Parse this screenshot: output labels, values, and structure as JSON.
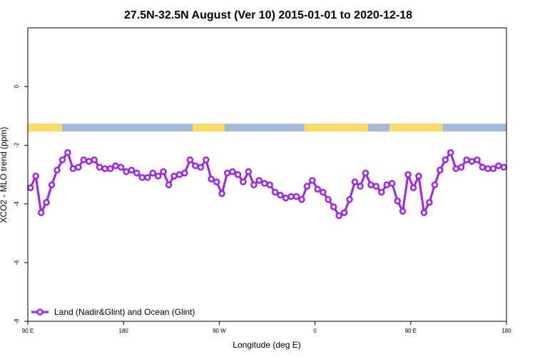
{
  "chart_data": {
    "type": "line",
    "title": "27.5N-32.5N August (Ver 10)   2015-01-01 to 2020-12-18",
    "xlabel": "Longitude (deg E)",
    "ylabel": "XCO2 - MLO trend (ppm)",
    "xlim": [
      90,
      540
    ],
    "ylim": [
      -8,
      2
    ],
    "x_ticks": [
      {
        "value": 90,
        "label": "90 E"
      },
      {
        "value": 180,
        "label": "180"
      },
      {
        "value": 270,
        "label": "90 W"
      },
      {
        "value": 360,
        "label": "0"
      },
      {
        "value": 450,
        "label": "90 E"
      },
      {
        "value": 540,
        "label": "180"
      }
    ],
    "y_ticks": [
      {
        "value": 0,
        "label": "0"
      },
      {
        "value": -2,
        "label": "-2"
      },
      {
        "value": -4,
        "label": "-4"
      },
      {
        "value": -6,
        "label": "-6"
      },
      {
        "value": -8,
        "label": "-8"
      }
    ],
    "grid": false,
    "legend_position": "bottom-left",
    "series": [
      {
        "name": "Land (Nadir&Glint) and Ocean (Glint)",
        "color": "#a020f0",
        "x": [
          92.5,
          97.5,
          102.5,
          107.5,
          112.5,
          117.5,
          122.5,
          127.5,
          132.5,
          137.5,
          142.5,
          147.5,
          152.5,
          157.5,
          162.5,
          167.5,
          172.5,
          177.5,
          182.5,
          187.5,
          192.5,
          197.5,
          202.5,
          207.5,
          212.5,
          217.5,
          222.5,
          227.5,
          232.5,
          237.5,
          242.5,
          247.5,
          252.5,
          257.5,
          262.5,
          267.5,
          272.5,
          277.5,
          282.5,
          287.5,
          292.5,
          297.5,
          302.5,
          307.5,
          312.5,
          317.5,
          322.5,
          327.5,
          332.5,
          337.5,
          342.5,
          347.5,
          352.5,
          357.5,
          362.5,
          367.5,
          372.5,
          377.5,
          382.5,
          387.5,
          392.5,
          397.5,
          402.5,
          407.5,
          412.5,
          417.5,
          422.5,
          427.5,
          432.5,
          437.5,
          442.5,
          447.5,
          452.5,
          457.5,
          462.5,
          467.5,
          472.5,
          477.5,
          482.5,
          487.5,
          492.5,
          497.5,
          502.5,
          507.5,
          512.5,
          517.5,
          522.5,
          527.5,
          532.5,
          537.5
        ],
        "y": [
          -3.45,
          -3.05,
          -4.3,
          -3.95,
          -3.35,
          -2.85,
          -2.5,
          -2.25,
          -2.8,
          -2.75,
          -2.5,
          -2.55,
          -2.5,
          -2.75,
          -2.8,
          -2.8,
          -2.7,
          -2.75,
          -2.9,
          -2.85,
          -2.95,
          -3.1,
          -3.1,
          -2.95,
          -3.05,
          -2.9,
          -3.35,
          -3.05,
          -3.0,
          -2.95,
          -2.5,
          -2.7,
          -2.75,
          -2.5,
          -3.15,
          -3.25,
          -3.65,
          -2.95,
          -2.9,
          -3.0,
          -3.25,
          -2.9,
          -3.35,
          -3.2,
          -3.3,
          -3.35,
          -3.6,
          -3.7,
          -3.8,
          -3.75,
          -3.75,
          -3.85,
          -3.4,
          -3.2,
          -3.5,
          -3.6,
          -3.85,
          -4.1,
          -4.4,
          -4.3,
          -3.85,
          -3.25,
          -3.4,
          -2.95,
          -3.35,
          -3.4,
          -3.6,
          -3.35,
          -3.3,
          -3.9,
          -4.25,
          -3.0,
          -3.45,
          -3.05,
          -4.3,
          -3.95,
          -3.35,
          -2.85,
          -2.5,
          -2.25,
          -2.8,
          -2.75,
          -2.5,
          -2.55,
          -2.5,
          -2.75,
          -2.8,
          -2.8,
          -2.7,
          -2.75
        ]
      }
    ],
    "surface_band": {
      "y_value": -1.4,
      "land_color": "#ffd966",
      "ocean_color": "#a2b8dc",
      "land_segments": [
        [
          90,
          122
        ],
        [
          245,
          275
        ],
        [
          350,
          410
        ],
        [
          430,
          480
        ]
      ]
    }
  }
}
